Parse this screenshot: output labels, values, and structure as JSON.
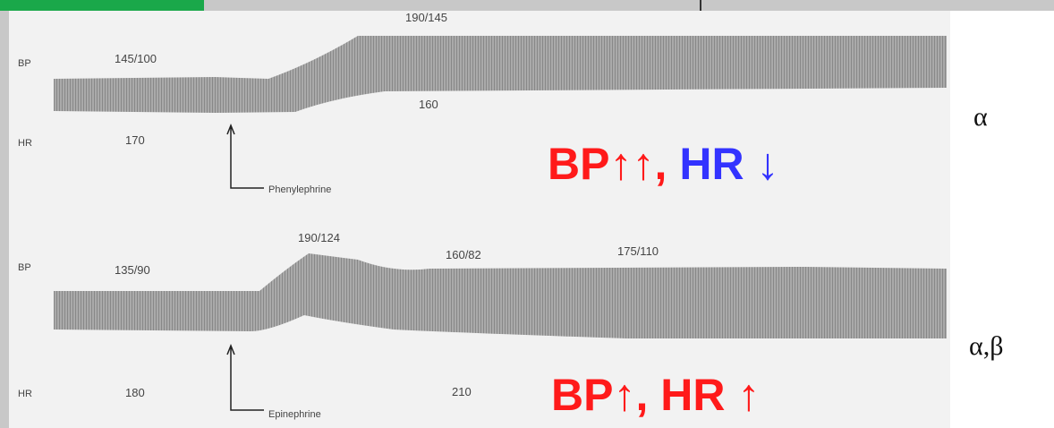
{
  "top_tracing": {
    "bp_label": "BP",
    "hr_label": "HR",
    "bp_baseline": "145/100",
    "hr_baseline": "170",
    "bp_peak": "190/145",
    "hr_after": "160",
    "drug": "Phenylephrine",
    "effect_bp": "BP↑↑,",
    "effect_hr": "HR ↓",
    "receptor": "α"
  },
  "bottom_tracing": {
    "bp_label": "BP",
    "hr_label": "HR",
    "bp_baseline": "135/90",
    "hr_baseline": "180",
    "bp_peak": "190/124",
    "bp_mid": "160/82",
    "bp_late": "175/110",
    "hr_after": "210",
    "drug": "Epinephrine",
    "effect": "BP↑, HR ↑",
    "receptor": "α,β"
  }
}
